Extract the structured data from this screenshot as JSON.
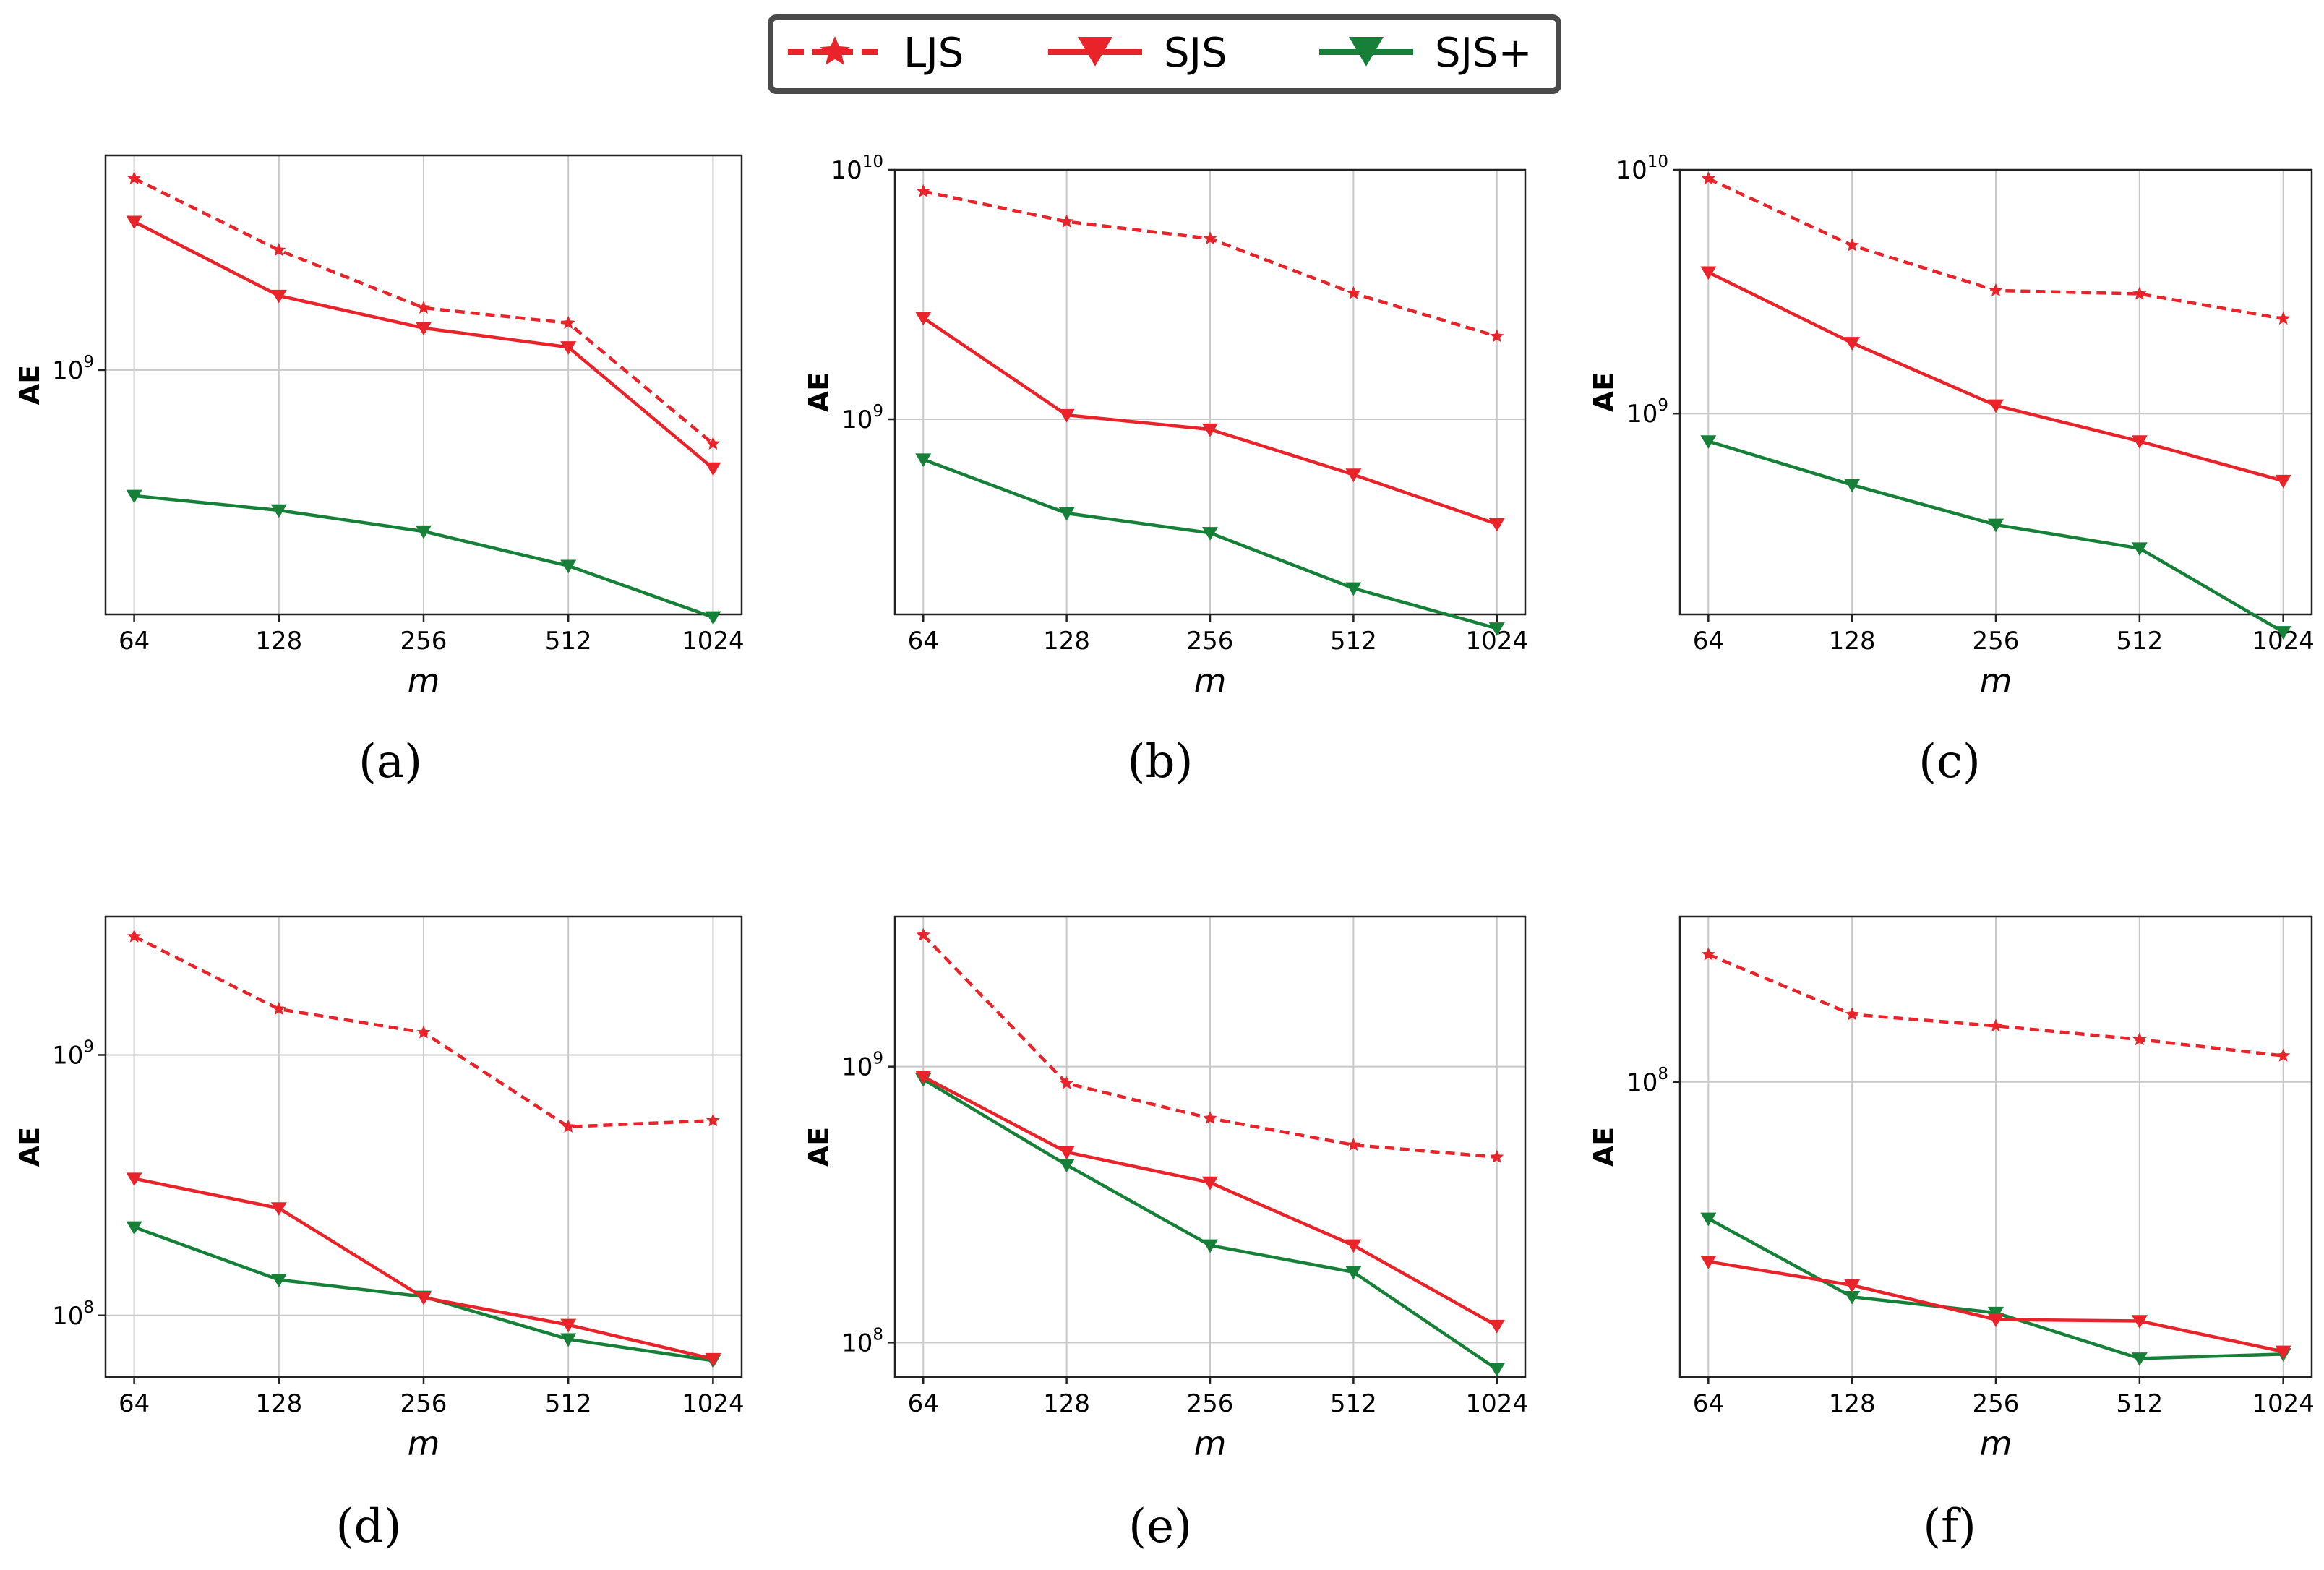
{
  "legend": {
    "entries": [
      {
        "label": "LJS",
        "color": "#e8232a",
        "dash": true,
        "marker": "star"
      },
      {
        "label": "SJS",
        "color": "#e8232a",
        "dash": false,
        "marker": "tri"
      },
      {
        "label": "SJS+",
        "color": "#178038",
        "dash": false,
        "marker": "tri"
      }
    ]
  },
  "chart_data": [
    {
      "type": "line",
      "panel": "(a)",
      "xlabel": "m",
      "ylabel": "AE",
      "yscale": "log",
      "categories": [
        "64",
        "128",
        "256",
        "512",
        "1024"
      ],
      "ylim": [
        130000000,
        6000000000
      ],
      "yticks": [
        {
          "value": 1000000000,
          "base": "10",
          "exp": "9"
        }
      ],
      "series": [
        {
          "name": "LJS",
          "values": [
            4950000000,
            2720000000,
            1680000000,
            1480000000,
            540000000
          ]
        },
        {
          "name": "SJS",
          "values": [
            3450000000,
            1860000000,
            1420000000,
            1210000000,
            440000000
          ]
        },
        {
          "name": "SJS+",
          "values": [
            350000000,
            310000000,
            260000000,
            195000000,
            127000000
          ]
        }
      ]
    },
    {
      "type": "line",
      "panel": "(b)",
      "xlabel": "m",
      "ylabel": "AE",
      "yscale": "log",
      "categories": [
        "64",
        "128",
        "256",
        "512",
        "1024"
      ],
      "ylim": [
        165000000,
        10000000000
      ],
      "yticks": [
        {
          "value": 1000000000,
          "base": "10",
          "exp": "9"
        },
        {
          "value": 10000000000,
          "base": "10",
          "exp": "10"
        }
      ],
      "series": [
        {
          "name": "LJS",
          "values": [
            8200000000,
            6200000000,
            5300000000,
            3200000000,
            2150000000
          ]
        },
        {
          "name": "SJS",
          "values": [
            2550000000,
            1040000000,
            910000000,
            600000000,
            380000000
          ]
        },
        {
          "name": "SJS+",
          "values": [
            690000000,
            420000000,
            350000000,
            210000000,
            145000000
          ]
        }
      ]
    },
    {
      "type": "line",
      "panel": "(c)",
      "xlabel": "m",
      "ylabel": "AE",
      "yscale": "log",
      "categories": [
        "64",
        "128",
        "256",
        "512",
        "1024"
      ],
      "ylim": [
        150000000,
        10000000000
      ],
      "yticks": [
        {
          "value": 1000000000,
          "base": "10",
          "exp": "9"
        },
        {
          "value": 10000000000,
          "base": "10",
          "exp": "10"
        }
      ],
      "series": [
        {
          "name": "LJS",
          "values": [
            9200000000,
            4900000000,
            3200000000,
            3100000000,
            2450000000
          ]
        },
        {
          "name": "SJS",
          "values": [
            3800000000,
            1950000000,
            1080000000,
            770000000,
            530000000
          ]
        },
        {
          "name": "SJS+",
          "values": [
            770000000,
            510000000,
            350000000,
            280000000,
            127000000
          ]
        }
      ]
    },
    {
      "type": "line",
      "panel": "(d)",
      "xlabel": "m",
      "ylabel": "AE",
      "yscale": "log",
      "categories": [
        "64",
        "128",
        "256",
        "512",
        "1024"
      ],
      "ylim": [
        58000000,
        3400000000
      ],
      "yticks": [
        {
          "value": 100000000,
          "base": "10",
          "exp": "8"
        },
        {
          "value": 1000000000,
          "base": "10",
          "exp": "9"
        }
      ],
      "series": [
        {
          "name": "LJS",
          "values": [
            2850000000,
            1500000000,
            1220000000,
            530000000,
            560000000
          ]
        },
        {
          "name": "SJS",
          "values": [
            335000000,
            258000000,
            117000000,
            92000000,
            68000000
          ]
        },
        {
          "name": "SJS+",
          "values": [
            218000000,
            137000000,
            118000000,
            81000000,
            67000000
          ]
        }
      ]
    },
    {
      "type": "line",
      "panel": "(e)",
      "xlabel": "m",
      "ylabel": "AE",
      "yscale": "log",
      "categories": [
        "64",
        "128",
        "256",
        "512",
        "1024"
      ],
      "ylim": [
        75000000,
        3500000000
      ],
      "yticks": [
        {
          "value": 100000000,
          "base": "10",
          "exp": "8"
        },
        {
          "value": 1000000000,
          "base": "10",
          "exp": "9"
        }
      ],
      "series": [
        {
          "name": "LJS",
          "values": [
            3000000000,
            870000000,
            650000000,
            520000000,
            470000000
          ]
        },
        {
          "name": "SJS",
          "values": [
            920000000,
            490000000,
            380000000,
            225000000,
            115000000
          ]
        },
        {
          "name": "SJS+",
          "values": [
            900000000,
            440000000,
            225000000,
            180000000,
            80000000
          ]
        }
      ]
    },
    {
      "type": "line",
      "panel": "(f)",
      "xlabel": "m",
      "ylabel": "AE",
      "yscale": "log",
      "categories": [
        "64",
        "128",
        "256",
        "512",
        "1024"
      ],
      "ylim": [
        17000000,
        270000000
      ],
      "yticks": [
        {
          "value": 100000000,
          "base": "10",
          "exp": "8"
        }
      ],
      "series": [
        {
          "name": "LJS",
          "values": [
            215000000,
            150000000,
            140000000,
            129000000,
            117000000
          ]
        },
        {
          "name": "SJS",
          "values": [
            34000000,
            29500000,
            24000000,
            23800000,
            19800000
          ]
        },
        {
          "name": "SJS+",
          "values": [
            44000000,
            27500000,
            25000000,
            19000000,
            19500000
          ]
        }
      ]
    }
  ]
}
